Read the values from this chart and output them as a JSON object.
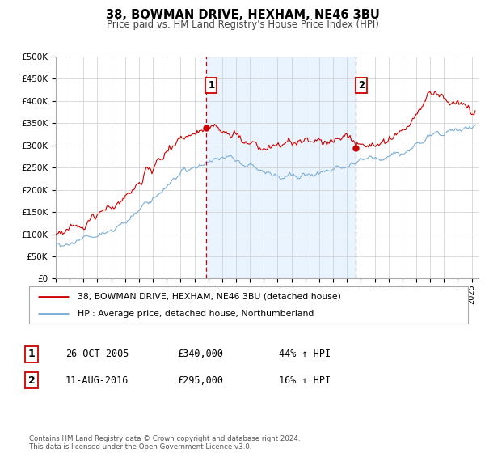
{
  "title": "38, BOWMAN DRIVE, HEXHAM, NE46 3BU",
  "subtitle": "Price paid vs. HM Land Registry's House Price Index (HPI)",
  "ylim": [
    0,
    500000
  ],
  "yticks": [
    0,
    50000,
    100000,
    150000,
    200000,
    250000,
    300000,
    350000,
    400000,
    450000,
    500000
  ],
  "ytick_labels": [
    "£0",
    "£50K",
    "£100K",
    "£150K",
    "£200K",
    "£250K",
    "£300K",
    "£350K",
    "£400K",
    "£450K",
    "£500K"
  ],
  "xlim_start": 1995.0,
  "xlim_end": 2025.5,
  "xtick_years": [
    1995,
    1996,
    1997,
    1998,
    1999,
    2000,
    2001,
    2002,
    2003,
    2004,
    2005,
    2006,
    2007,
    2008,
    2009,
    2010,
    2011,
    2012,
    2013,
    2014,
    2015,
    2016,
    2017,
    2018,
    2019,
    2020,
    2021,
    2022,
    2023,
    2024,
    2025
  ],
  "sale1_x": 2005.82,
  "sale1_y": 340000,
  "sale1_label": "1",
  "sale1_date": "26-OCT-2005",
  "sale1_price": "£340,000",
  "sale1_hpi": "44% ↑ HPI",
  "sale2_x": 2016.62,
  "sale2_y": 295000,
  "sale2_label": "2",
  "sale2_date": "11-AUG-2016",
  "sale2_price": "£295,000",
  "sale2_hpi": "16% ↑ HPI",
  "property_color": "#cc0000",
  "hpi_color": "#7aadd4",
  "legend_property": "38, BOWMAN DRIVE, HEXHAM, NE46 3BU (detached house)",
  "legend_hpi": "HPI: Average price, detached house, Northumberland",
  "footnote": "Contains HM Land Registry data © Crown copyright and database right 2024.\nThis data is licensed under the Open Government Licence v3.0.",
  "plot_bg_color": "#ffffff",
  "grid_color": "#cccccc",
  "shade_color": "#ddeeff"
}
